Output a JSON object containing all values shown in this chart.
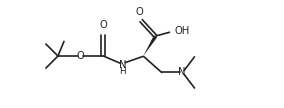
{
  "bg_color": "#ffffff",
  "line_color": "#222222",
  "line_width": 1.2,
  "font_size": 7.2,
  "xlim": [
    0,
    5.8
  ],
  "ylim": [
    0.2,
    2.8
  ],
  "figsize": [
    2.84,
    1.08
  ],
  "dpi": 100
}
